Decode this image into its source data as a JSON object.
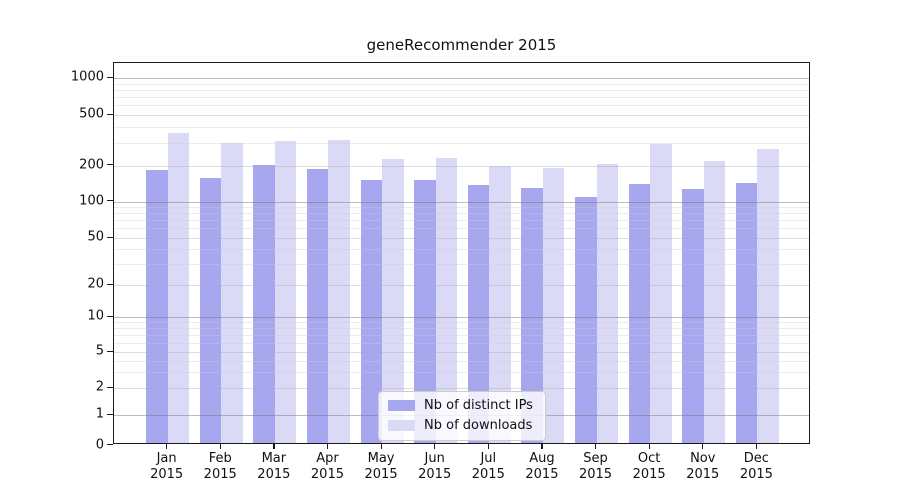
{
  "title": "geneRecommender 2015",
  "chart_data": {
    "type": "bar",
    "title": "geneRecommender 2015",
    "xlabel": "",
    "ylabel": "",
    "yscale": "symlog",
    "grid": true,
    "legend_position": "inside lower-center",
    "yticks": [
      0,
      1,
      2,
      5,
      10,
      20,
      50,
      100,
      200,
      500,
      1000
    ],
    "minor_gridline_values": [
      900,
      800,
      700,
      600,
      400,
      300,
      90,
      80,
      70,
      60,
      40,
      30,
      9,
      8,
      7,
      6,
      4,
      3
    ],
    "categories": [
      "Jan 2015",
      "Feb 2015",
      "Mar 2015",
      "Apr 2015",
      "May 2015",
      "Jun 2015",
      "Jul 2015",
      "Aug 2015",
      "Sep 2015",
      "Oct 2015",
      "Nov 2015",
      "Dec 2015"
    ],
    "series": [
      {
        "name": "Nb of distinct IPs",
        "color": "#a7a7f0",
        "values": [
          175,
          152,
          194,
          179,
          146,
          145,
          131,
          126,
          104,
          135,
          123,
          138
        ]
      },
      {
        "name": "Nb of downloads",
        "color": "#dadaf7",
        "values": [
          348,
          291,
          302,
          307,
          219,
          222,
          189,
          183,
          197,
          283,
          209,
          262
        ]
      }
    ]
  },
  "colors": {
    "background": "#ffffff",
    "spine": "#1a1a1a",
    "grid_strong": "#bcbcbc",
    "grid_light": "#dddddd",
    "grid_minor": "#ececec"
  }
}
